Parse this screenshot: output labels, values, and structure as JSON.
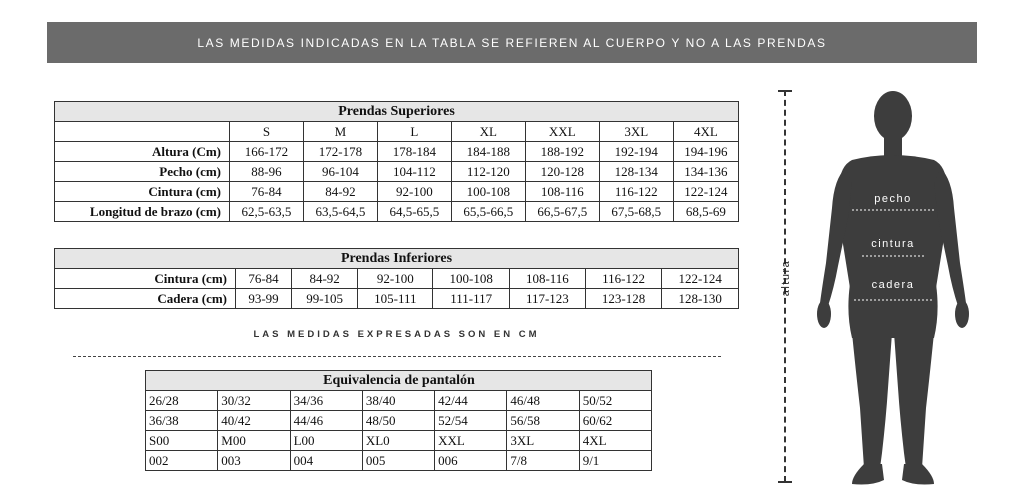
{
  "banner": {
    "text": "LAS MEDIDAS INDICADAS EN LA TABLA SE REFIEREN AL CUERPO Y NO A LAS PRENDAS"
  },
  "superiores": {
    "title": "Prendas Superiores",
    "sizes": [
      "S",
      "M",
      "L",
      "XL",
      "XXL",
      "3XL",
      "4XL"
    ],
    "rows": [
      {
        "label": "Altura (Cm)",
        "values": [
          "166-172",
          "172-178",
          "178-184",
          "184-188",
          "188-192",
          "192-194",
          "194-196"
        ]
      },
      {
        "label": "Pecho (cm)",
        "values": [
          "88-96",
          "96-104",
          "104-112",
          "112-120",
          "120-128",
          "128-134",
          "134-136"
        ]
      },
      {
        "label": "Cintura (cm)",
        "values": [
          "76-84",
          "84-92",
          "92-100",
          "100-108",
          "108-116",
          "116-122",
          "122-124"
        ]
      },
      {
        "label": "Longitud de brazo (cm)",
        "values": [
          "62,5-63,5",
          "63,5-64,5",
          "64,5-65,5",
          "65,5-66,5",
          "66,5-67,5",
          "67,5-68,5",
          "68,5-69"
        ]
      }
    ]
  },
  "inferiores": {
    "title": "Prendas Inferiores",
    "rows": [
      {
        "label": "Cintura (cm)",
        "values": [
          "76-84",
          "84-92",
          "92-100",
          "100-108",
          "108-116",
          "116-122",
          "122-124"
        ]
      },
      {
        "label": "Cadera (cm)",
        "values": [
          "93-99",
          "99-105",
          "105-111",
          "111-117",
          "117-123",
          "123-128",
          "128-130"
        ]
      }
    ]
  },
  "note": "LAS MEDIDAS EXPRESADAS SON EN CM",
  "equivalencia": {
    "title": "Equivalencia de pantalón",
    "rows": [
      [
        "26/28",
        "30/32",
        "34/36",
        "38/40",
        "42/44",
        "46/48",
        "50/52"
      ],
      [
        "36/38",
        "40/42",
        "44/46",
        "48/50",
        "52/54",
        "56/58",
        "60/62"
      ],
      [
        "S00",
        "M00",
        "L00",
        "XL0",
        "XXL",
        "3XL",
        "4XL"
      ],
      [
        "002",
        "003",
        "004",
        "005",
        "006",
        "7/8",
        "9/1"
      ]
    ]
  },
  "figure": {
    "altura": "altura",
    "pecho": "pecho",
    "cintura": "cintura",
    "cadera": "cadera",
    "icon": "human-body-silhouette-icon",
    "silhouette_color": "#3d3d3d"
  },
  "colors": {
    "banner_bg": "#6b6b6b",
    "table_header_bg": "#e6e6e6"
  }
}
